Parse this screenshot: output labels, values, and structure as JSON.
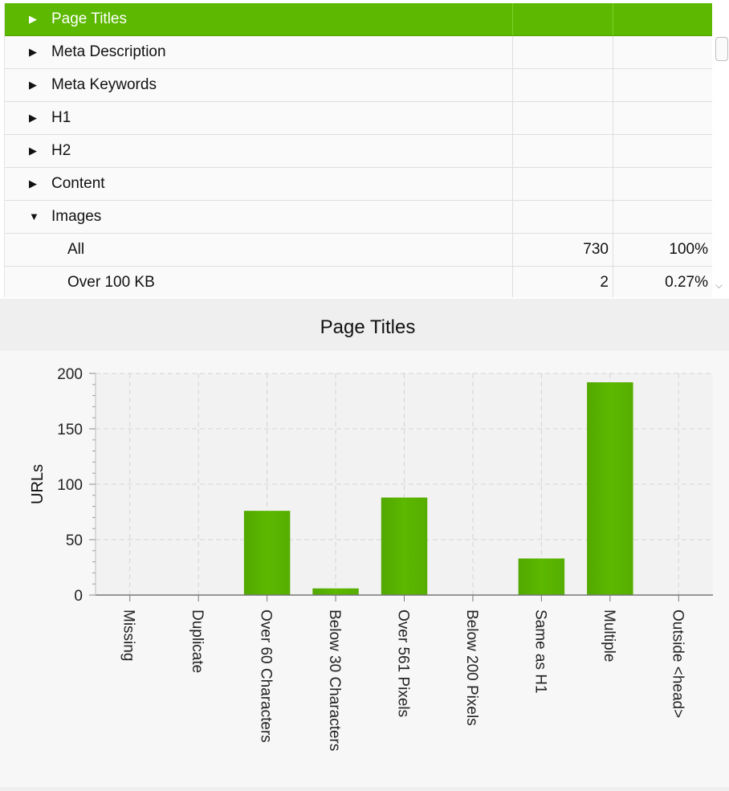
{
  "tree": {
    "rows": [
      {
        "label": "Page Titles",
        "expanded": false,
        "selected": true,
        "child": false,
        "count": "",
        "percent": ""
      },
      {
        "label": "Meta Description",
        "expanded": false,
        "selected": false,
        "child": false,
        "count": "",
        "percent": ""
      },
      {
        "label": "Meta Keywords",
        "expanded": false,
        "selected": false,
        "child": false,
        "count": "",
        "percent": ""
      },
      {
        "label": "H1",
        "expanded": false,
        "selected": false,
        "child": false,
        "count": "",
        "percent": ""
      },
      {
        "label": "H2",
        "expanded": false,
        "selected": false,
        "child": false,
        "count": "",
        "percent": ""
      },
      {
        "label": "Content",
        "expanded": false,
        "selected": false,
        "child": false,
        "count": "",
        "percent": ""
      },
      {
        "label": "Images",
        "expanded": true,
        "selected": false,
        "child": false,
        "count": "",
        "percent": ""
      },
      {
        "label": "All",
        "expanded": null,
        "selected": false,
        "child": true,
        "count": "730",
        "percent": "100%"
      },
      {
        "label": "Over 100 KB",
        "expanded": null,
        "selected": false,
        "child": true,
        "count": "2",
        "percent": "0.27%"
      }
    ],
    "expand_icon": "triangle-right-icon",
    "collapse_icon": "triangle-down-icon"
  },
  "chart_title": "Page Titles",
  "colors": {
    "accent": "#5cb800",
    "bar": "#5cb800",
    "grid": "#d4d4d4"
  },
  "chart_data": {
    "type": "bar",
    "title": "Page Titles",
    "xlabel": "",
    "ylabel": "URLs",
    "categories": [
      "Missing",
      "Duplicate",
      "Over 60 Characters",
      "Below 30 Characters",
      "Over 561 Pixels",
      "Below 200 Pixels",
      "Same as H1",
      "Multiple",
      "Outside <head>"
    ],
    "values": [
      0,
      0,
      76,
      6,
      88,
      0,
      33,
      192,
      0
    ],
    "ylim": [
      0,
      200
    ],
    "yticks": [
      0,
      50,
      100,
      150,
      200
    ],
    "grid": true,
    "legend": "none"
  }
}
